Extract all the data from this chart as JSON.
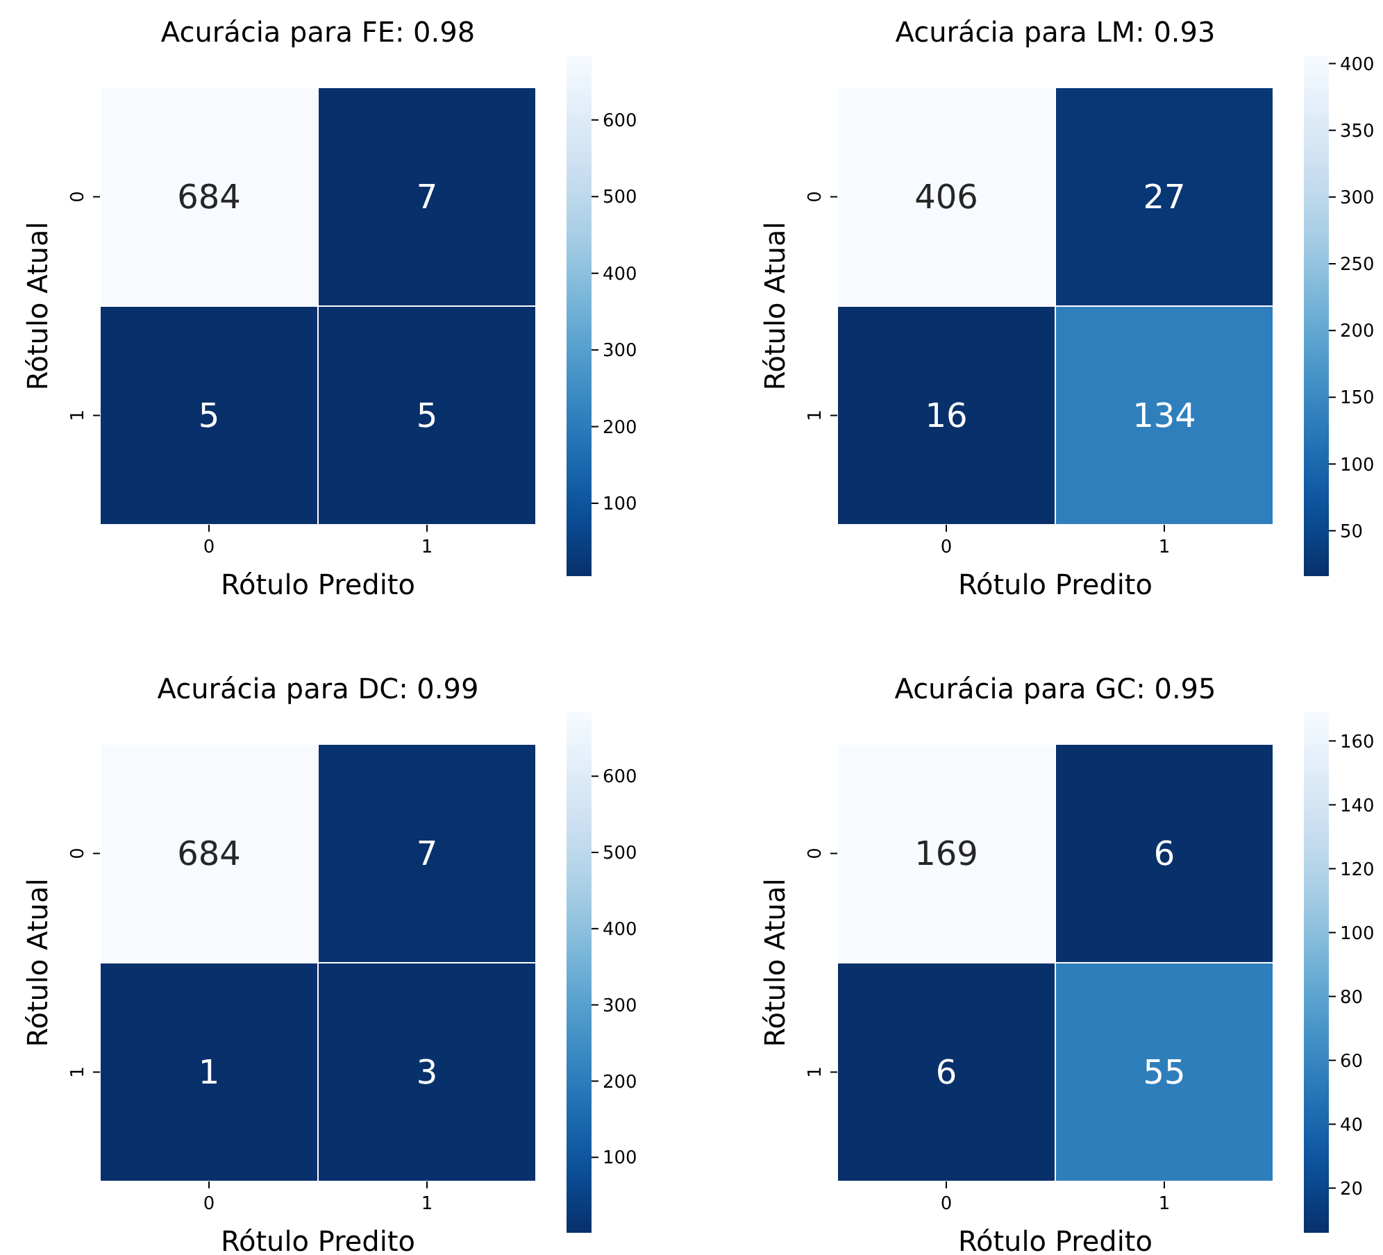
{
  "chart_data": [
    {
      "type": "heatmap",
      "title": "Acurácia para FE: 0.98",
      "xlabel": "Rótulo Predito",
      "ylabel": "Rótulo Atual",
      "categories": [
        "0",
        "1"
      ],
      "y_categories": [
        "0",
        "1"
      ],
      "cells": [
        [
          684,
          7
        ],
        [
          5,
          5
        ]
      ],
      "data_labels": true,
      "clim": [
        5,
        684
      ],
      "cticks": [
        100,
        200,
        300,
        400,
        500,
        600
      ]
    },
    {
      "type": "heatmap",
      "title": "Acurácia para LM: 0.93",
      "xlabel": "Rótulo Predito",
      "ylabel": "Rótulo Atual",
      "categories": [
        "0",
        "1"
      ],
      "y_categories": [
        "0",
        "1"
      ],
      "cells": [
        [
          406,
          27
        ],
        [
          16,
          134
        ]
      ],
      "data_labels": true,
      "clim": [
        16,
        406
      ],
      "cticks": [
        50,
        100,
        150,
        200,
        250,
        300,
        350,
        400
      ]
    },
    {
      "type": "heatmap",
      "title": "Acurácia para DC: 0.99",
      "xlabel": "Rótulo Predito",
      "ylabel": "Rótulo Atual",
      "categories": [
        "0",
        "1"
      ],
      "y_categories": [
        "0",
        "1"
      ],
      "cells": [
        [
          684,
          7
        ],
        [
          1,
          3
        ]
      ],
      "data_labels": true,
      "clim": [
        1,
        684
      ],
      "cticks": [
        100,
        200,
        300,
        400,
        500,
        600
      ]
    },
    {
      "type": "heatmap",
      "title": "Acurácia para GC: 0.95",
      "xlabel": "Rótulo Predito",
      "ylabel": "Rótulo Atual",
      "categories": [
        "0",
        "1"
      ],
      "y_categories": [
        "0",
        "1"
      ],
      "cells": [
        [
          169,
          6
        ],
        [
          6,
          55
        ]
      ],
      "data_labels": true,
      "clim": [
        6,
        169
      ],
      "cticks": [
        20,
        40,
        60,
        80,
        100,
        120,
        140,
        160
      ]
    }
  ]
}
